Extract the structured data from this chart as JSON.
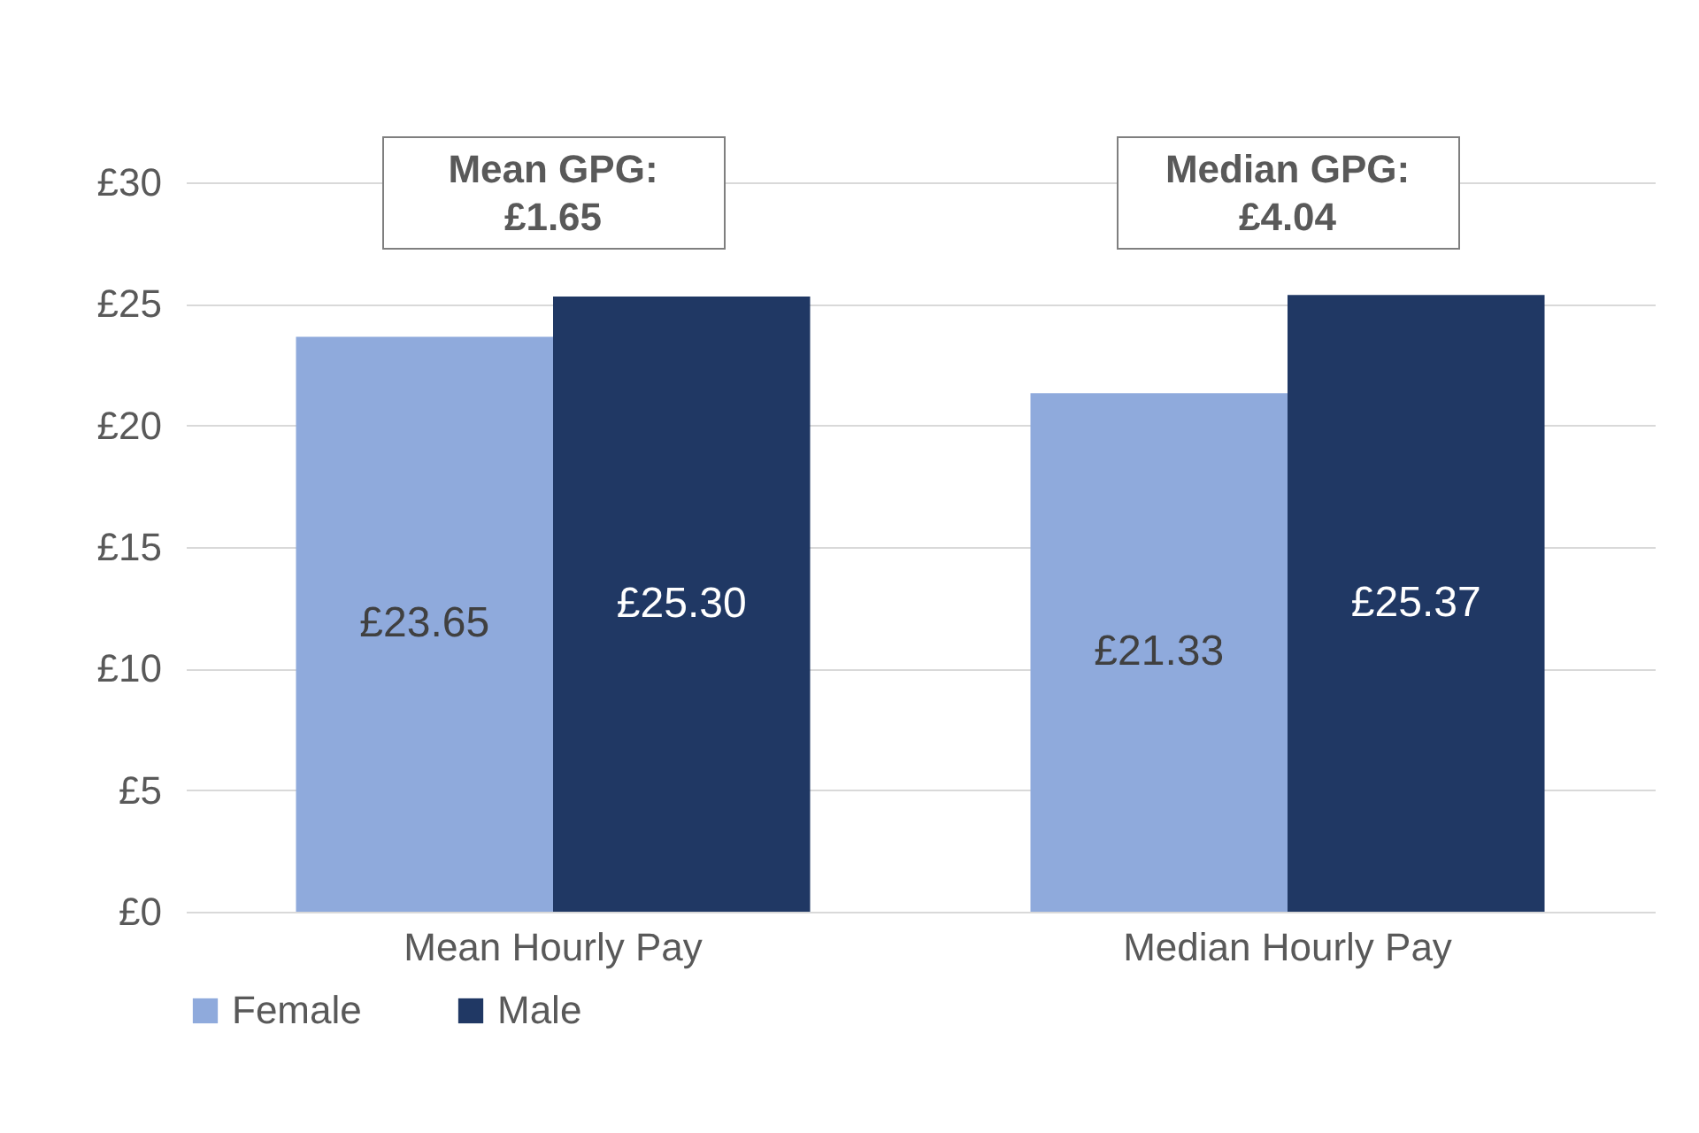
{
  "chart_data": {
    "type": "bar",
    "categories": [
      "Mean Hourly Pay",
      "Median Hourly Pay"
    ],
    "series": [
      {
        "name": "Female",
        "color": "#8faadc",
        "values": [
          23.65,
          21.33
        ],
        "value_labels": [
          "£23.65",
          "£21.33"
        ]
      },
      {
        "name": "Male",
        "color": "#203864",
        "values": [
          25.3,
          25.37
        ],
        "value_labels": [
          "£25.30",
          "£25.37"
        ]
      }
    ],
    "ylim": [
      0,
      30
    ],
    "yticks": [
      {
        "value": 0,
        "label": "£0"
      },
      {
        "value": 5,
        "label": "£5"
      },
      {
        "value": 10,
        "label": "£10"
      },
      {
        "value": 15,
        "label": "£15"
      },
      {
        "value": 20,
        "label": "£20"
      },
      {
        "value": 25,
        "label": "£25"
      },
      {
        "value": 30,
        "label": "£30"
      }
    ],
    "annotations": [
      "Mean GPG: £1.65",
      "Median GPG: £4.04"
    ],
    "grid": "y",
    "legend": "bottom"
  }
}
